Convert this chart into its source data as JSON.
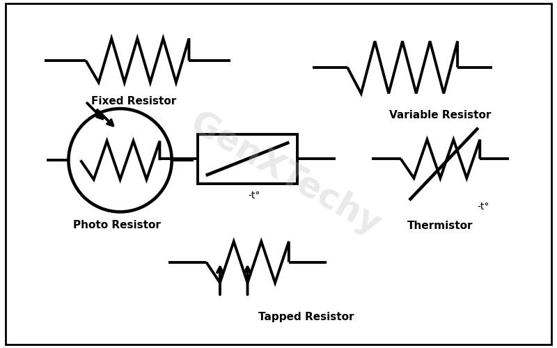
{
  "bg_color": "#ffffff",
  "line_color": "#000000",
  "watermark": "GenXTechy",
  "watermark_color": "#bbbbbb",
  "lw": 2.8,
  "labels": {
    "fixed": "Fixed Resistor",
    "photo": "Photo Resistor",
    "variable": "Variable Resistor",
    "thermistor_box": "-t°",
    "thermistor": "Thermistor",
    "tapped": "Tapped Resistor"
  },
  "layout": {
    "xlim": [
      0,
      8
    ],
    "ylim": [
      0,
      5
    ]
  }
}
